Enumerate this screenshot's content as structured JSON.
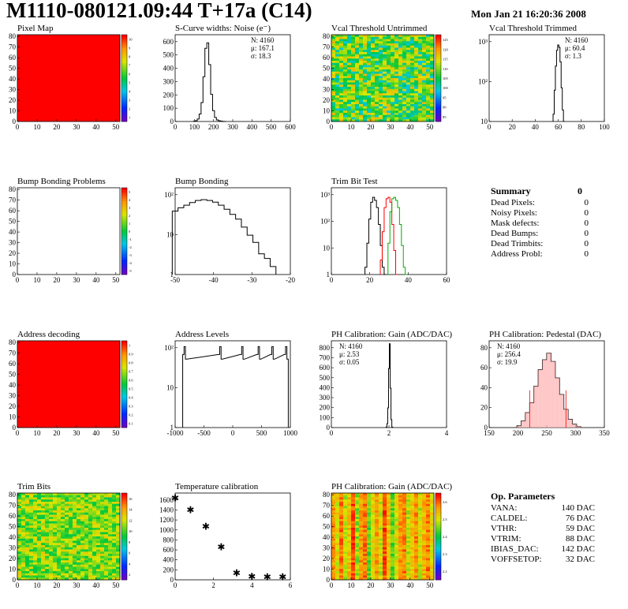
{
  "header": {
    "title": "M1110-080121.09:44 T+17a (C14)",
    "date": "Mon Jan 21 16:20:36 2008"
  },
  "panels": [
    {
      "id": "pixel-map",
      "title": "Pixel Map",
      "type": "heatmap",
      "pattern": "solid",
      "xticks": [
        "0",
        "10",
        "20",
        "30",
        "40",
        "50"
      ],
      "yticks": [
        "0",
        "10",
        "20",
        "30",
        "40",
        "50",
        "60",
        "70",
        "80"
      ],
      "palette": [
        "#ff0000"
      ],
      "zticks": [
        "1",
        "2",
        "3",
        "4",
        "5",
        "6",
        "7",
        "8",
        "9",
        "10"
      ]
    },
    {
      "id": "scurve",
      "title": "S-Curve widths: Noise (e⁻)",
      "type": "histogram",
      "log": false,
      "xticks": [
        "0",
        "100",
        "200",
        "300",
        "400",
        "500",
        "600"
      ],
      "yticks": [
        "0",
        "100",
        "200",
        "300",
        "400",
        "500",
        "600"
      ],
      "xlim": [
        0,
        600
      ],
      "ylim": [
        0,
        640
      ],
      "stats": [
        "N: 4160",
        "μ: 167.1",
        "σ: 18.3"
      ],
      "series": [
        {
          "color": "#000000",
          "x": [
            100,
            110,
            120,
            130,
            140,
            150,
            160,
            170,
            180,
            190,
            200,
            210,
            220,
            230,
            240,
            250,
            260
          ],
          "y": [
            2,
            6,
            18,
            55,
            140,
            330,
            540,
            580,
            420,
            200,
            80,
            30,
            12,
            6,
            3,
            1,
            0
          ]
        }
      ]
    },
    {
      "id": "vcal-untrimmed",
      "title": "Vcal Threshold Untrimmed",
      "type": "heatmap",
      "pattern": "noise",
      "xticks": [
        "0",
        "10",
        "20",
        "30",
        "40",
        "50"
      ],
      "yticks": [
        "0",
        "10",
        "20",
        "30",
        "40",
        "50",
        "60",
        "70",
        "80"
      ],
      "zticks": [
        "85",
        "90",
        "95",
        "100",
        "105",
        "110",
        "115",
        "120",
        "125"
      ]
    },
    {
      "id": "vcal-trimmed",
      "title": "Vcal Threshold Trimmed",
      "type": "histogram",
      "log": true,
      "xticks": [
        "0",
        "20",
        "40",
        "60",
        "80",
        "100"
      ],
      "yticks": [
        "10",
        "10²",
        "10³"
      ],
      "xlim": [
        0,
        100
      ],
      "logmin": 1,
      "logmax": 4000,
      "stats": [
        "N: 4160",
        "μ: 60.4",
        "σ: 1.3"
      ],
      "series": [
        {
          "color": "#000000",
          "x": [
            56,
            57,
            58,
            59,
            60,
            61,
            62,
            63,
            64,
            65
          ],
          "y": [
            2,
            20,
            200,
            900,
            1500,
            1200,
            300,
            25,
            3,
            1
          ]
        }
      ]
    },
    {
      "id": "bump-problems",
      "title": "Bump Bonding Problems",
      "type": "heatmap",
      "pattern": "empty",
      "xticks": [
        "0",
        "10",
        "20",
        "30",
        "40",
        "50"
      ],
      "yticks": [
        "0",
        "10",
        "20",
        "30",
        "40",
        "50",
        "60",
        "70",
        "80"
      ],
      "zticks": [
        "-5",
        "-4",
        "-3",
        "-2",
        "-1",
        "0",
        "1",
        "2",
        "3",
        "4",
        "5"
      ]
    },
    {
      "id": "bump-bonding",
      "title": "Bump Bonding",
      "type": "histogram",
      "log": true,
      "xticks": [
        "-50",
        "-40",
        "-30",
        "-20"
      ],
      "yticks": [
        "1",
        "10",
        "10²"
      ],
      "xlim": [
        -50,
        -10
      ],
      "logmin": 0.5,
      "logmax": 900,
      "series": [
        {
          "color": "#000000",
          "x": [
            -50,
            -48,
            -46,
            -44,
            -42,
            -40,
            -38,
            -36,
            -34,
            -32,
            -30,
            -28,
            -26,
            -24,
            -22,
            -20,
            -18,
            -16
          ],
          "y": [
            120,
            160,
            200,
            250,
            300,
            320,
            300,
            260,
            200,
            140,
            90,
            60,
            30,
            15,
            8,
            3,
            2,
            1
          ]
        }
      ]
    },
    {
      "id": "trim-bit-test",
      "title": "Trim Bit Test",
      "type": "histogram",
      "log": true,
      "xticks": [
        "0",
        "20",
        "40",
        "60"
      ],
      "yticks": [
        "1",
        "10",
        "10²",
        "10³"
      ],
      "xlim": [
        0,
        60
      ],
      "logmin": 0.5,
      "logmax": 2000,
      "series": [
        {
          "color": "#000000",
          "x": [
            18,
            19,
            20,
            21,
            22,
            23,
            24,
            25,
            26,
            27,
            28
          ],
          "y": [
            1,
            10,
            100,
            500,
            800,
            600,
            300,
            60,
            8,
            1,
            0
          ]
        },
        {
          "color": "#ff0000",
          "x": [
            26,
            27,
            28,
            29,
            30,
            31,
            32,
            33,
            34
          ],
          "y": [
            2,
            30,
            300,
            700,
            800,
            500,
            60,
            5,
            0
          ]
        },
        {
          "color": "#00b000",
          "x": [
            30,
            31,
            32,
            33,
            34,
            35,
            36,
            37,
            38,
            39
          ],
          "y": [
            10,
            200,
            700,
            800,
            600,
            300,
            60,
            8,
            1,
            0
          ]
        }
      ]
    },
    {
      "id": "address-decoding",
      "title": "Address decoding",
      "type": "heatmap",
      "pattern": "solid",
      "palette": [
        "#ff0000"
      ],
      "xticks": [
        "0",
        "10",
        "20",
        "30",
        "40",
        "50"
      ],
      "yticks": [
        "0",
        "10",
        "20",
        "30",
        "40",
        "50",
        "60",
        "70",
        "80"
      ],
      "zticks": [
        "0.1",
        "0.2",
        "0.3",
        "0.4",
        "0.5",
        "0.6",
        "0.7",
        "0.8",
        "0.9",
        "1"
      ]
    },
    {
      "id": "address-levels",
      "title": "Address Levels",
      "type": "histogram",
      "log": true,
      "xticks": [
        "-1000",
        "-500",
        "0",
        "500",
        "1000"
      ],
      "yticks": [
        "1",
        "10",
        "10²"
      ],
      "xlim": [
        -1100,
        1000
      ],
      "logmin": 0.5,
      "logmax": 1000,
      "series": [
        {
          "color": "#000000",
          "x": [
            -950,
            -925,
            -900,
            -300,
            -275,
            -250,
            100,
            125,
            150,
            400,
            425,
            450,
            650,
            675,
            700,
            900,
            925,
            950
          ],
          "y": [
            300,
            600,
            200,
            300,
            600,
            200,
            300,
            600,
            200,
            300,
            600,
            200,
            300,
            600,
            200,
            300,
            600,
            200
          ]
        }
      ]
    },
    {
      "id": "ph-gain",
      "title": "PH Calibration: Gain (ADC/DAC)",
      "type": "histogram",
      "log": false,
      "xticks": [
        "0",
        "2",
        "4"
      ],
      "yticks": [
        "0",
        "100",
        "200",
        "300",
        "400",
        "500",
        "600",
        "700",
        "800"
      ],
      "xlim": [
        -1,
        6
      ],
      "ylim": [
        0,
        880
      ],
      "stats": [
        "N: 4160",
        "μ: 2.53",
        "σ: 0.05"
      ],
      "series": [
        {
          "color": "#000000",
          "x": [
            2.35,
            2.4,
            2.45,
            2.5,
            2.55,
            2.6,
            2.65,
            2.7
          ],
          "y": [
            5,
            40,
            200,
            600,
            850,
            400,
            80,
            5
          ]
        }
      ]
    },
    {
      "id": "ph-pedestal",
      "title": "PH Calibration: Pedestal (DAC)",
      "type": "histogram",
      "log": false,
      "xticks": [
        "150",
        "200",
        "250",
        "300",
        "350"
      ],
      "yticks": [
        "0",
        "20",
        "40",
        "60",
        "80"
      ],
      "xlim": [
        120,
        390
      ],
      "ylim": [
        0,
        105
      ],
      "stats": [
        "N: 4160",
        "μ: 256.4",
        "σ: 19.9"
      ],
      "series": [
        {
          "color": "#000000",
          "x": [
            190,
            200,
            210,
            220,
            230,
            240,
            250,
            260,
            270,
            280,
            290,
            300,
            310,
            320,
            330
          ],
          "y": [
            2,
            8,
            18,
            30,
            50,
            70,
            82,
            90,
            80,
            60,
            40,
            22,
            10,
            4,
            1
          ]
        }
      ]
    },
    {
      "id": "trim-bits",
      "title": "Trim Bits",
      "type": "heatmap",
      "pattern": "noise-green",
      "xticks": [
        "0",
        "10",
        "20",
        "30",
        "40",
        "50"
      ],
      "yticks": [
        "0",
        "10",
        "20",
        "30",
        "40",
        "50",
        "60",
        "70",
        "80"
      ],
      "zticks": [
        "2",
        "4",
        "6",
        "8",
        "10",
        "12",
        "14",
        "16"
      ]
    },
    {
      "id": "temperature",
      "title": "Temperature calibration",
      "type": "scatter",
      "xticks": [
        "0",
        "2",
        "4",
        "6"
      ],
      "yticks": [
        "0",
        "200",
        "400",
        "600",
        "800",
        "1000",
        "1200",
        "1400",
        "1600"
      ],
      "xlim": [
        0,
        7.5
      ],
      "ylim": [
        0,
        1650
      ],
      "series": [
        {
          "color": "#000000",
          "x": [
            0,
            1,
            2,
            3,
            4,
            5,
            6,
            7
          ],
          "y": [
            1550,
            1330,
            1010,
            620,
            130,
            60,
            50,
            50
          ]
        }
      ]
    },
    {
      "id": "ph-gain-map",
      "title": "PH Calibration: Gain (ADC/DAC)",
      "type": "heatmap",
      "pattern": "stripes",
      "xticks": [
        "0",
        "10",
        "20",
        "30",
        "40",
        "50"
      ],
      "yticks": [
        "0",
        "10",
        "20",
        "30",
        "40",
        "50",
        "60",
        "70",
        "80"
      ],
      "zticks": [
        "2.2",
        "2.3",
        "2.4",
        "2.5",
        "2.6"
      ]
    }
  ],
  "summary": {
    "heading": "Summary",
    "heading_value": "0",
    "rows": [
      {
        "label": "Dead Pixels:",
        "value": "0"
      },
      {
        "label": "Noisy Pixels:",
        "value": "0"
      },
      {
        "label": "Mask defects:",
        "value": "0"
      },
      {
        "label": "Dead Bumps:",
        "value": "0"
      },
      {
        "label": "Dead Trimbits:",
        "value": "0"
      },
      {
        "label": "Address Probl:",
        "value": "0"
      }
    ]
  },
  "op_params": {
    "heading": "Op. Parameters",
    "rows": [
      {
        "label": "VANA:",
        "value": "140 DAC"
      },
      {
        "label": "CALDEL:",
        "value": "76 DAC"
      },
      {
        "label": "VTHR:",
        "value": "59 DAC"
      },
      {
        "label": "VTRIM:",
        "value": "88 DAC"
      },
      {
        "label": "IBIAS_DAC:",
        "value": "142 DAC"
      },
      {
        "label": "VOFFSETOP:",
        "value": "32 DAC"
      }
    ]
  },
  "chart_data": [
    {
      "type": "heatmap",
      "title": "Pixel Map",
      "xlim": [
        0,
        52
      ],
      "ylim": [
        0,
        80
      ],
      "zlim": [
        1,
        10
      ],
      "note_value": 10
    },
    {
      "type": "bar",
      "title": "S-Curve widths: Noise (e⁻)",
      "xlim": [
        0,
        600
      ],
      "ylim": [
        0,
        640
      ],
      "x": [
        100,
        110,
        120,
        130,
        140,
        150,
        160,
        170,
        180,
        190,
        200,
        210,
        220,
        230,
        240,
        250,
        260
      ],
      "values": [
        2,
        6,
        18,
        55,
        140,
        330,
        540,
        580,
        420,
        200,
        80,
        30,
        12,
        6,
        3,
        1,
        0
      ]
    },
    {
      "type": "heatmap",
      "title": "Vcal Threshold Untrimmed",
      "xlim": [
        0,
        52
      ],
      "ylim": [
        0,
        80
      ],
      "zlim": [
        85,
        125
      ]
    },
    {
      "type": "bar",
      "title": "Vcal Threshold Trimmed",
      "log_y": true,
      "xlim": [
        0,
        100
      ],
      "x": [
        56,
        57,
        58,
        59,
        60,
        61,
        62,
        63,
        64,
        65
      ],
      "values": [
        2,
        20,
        200,
        900,
        1500,
        1200,
        300,
        25,
        3,
        1
      ]
    },
    {
      "type": "heatmap",
      "title": "Bump Bonding Problems",
      "xlim": [
        0,
        52
      ],
      "ylim": [
        0,
        80
      ],
      "zlim": [
        -5,
        5
      ]
    },
    {
      "type": "bar",
      "title": "Bump Bonding",
      "log_y": true,
      "xlim": [
        -50,
        -10
      ]
    },
    {
      "type": "bar",
      "title": "Trim Bit Test",
      "log_y": true,
      "xlim": [
        0,
        60
      ]
    },
    {
      "type": "heatmap",
      "title": "Address decoding",
      "xlim": [
        0,
        52
      ],
      "ylim": [
        0,
        80
      ],
      "zlim": [
        0.1,
        1
      ]
    },
    {
      "type": "bar",
      "title": "Address Levels",
      "log_y": true,
      "xlim": [
        -1100,
        1000
      ]
    },
    {
      "type": "bar",
      "title": "PH Calibration: Gain (ADC/DAC)",
      "xlim": [
        -1,
        6
      ],
      "ylim": [
        0,
        880
      ]
    },
    {
      "type": "bar",
      "title": "PH Calibration: Pedestal (DAC)",
      "xlim": [
        120,
        390
      ],
      "ylim": [
        0,
        105
      ]
    },
    {
      "type": "heatmap",
      "title": "Trim Bits",
      "xlim": [
        0,
        52
      ],
      "ylim": [
        0,
        80
      ],
      "zlim": [
        1,
        16
      ]
    },
    {
      "type": "scatter",
      "title": "Temperature calibration",
      "x": [
        0,
        1,
        2,
        3,
        4,
        5,
        6,
        7
      ],
      "y": [
        1550,
        1330,
        1010,
        620,
        130,
        60,
        50,
        50
      ]
    },
    {
      "type": "heatmap",
      "title": "PH Calibration: Gain (ADC/DAC)",
      "xlim": [
        0,
        52
      ],
      "ylim": [
        0,
        80
      ],
      "zlim": [
        2.15,
        2.7
      ]
    }
  ]
}
